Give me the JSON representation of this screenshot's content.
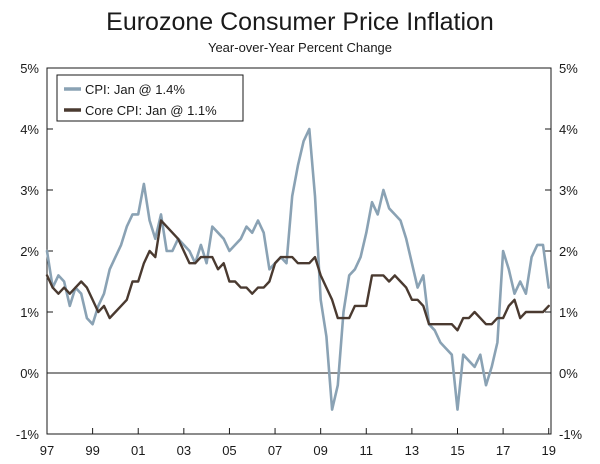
{
  "chart_data": {
    "type": "line",
    "title": "Eurozone Consumer Price Inflation",
    "subtitle": "Year-over-Year Percent Change",
    "xlabel": "",
    "ylabel": "",
    "xlim": [
      1997.0,
      2019.1
    ],
    "ylim": [
      -1,
      5
    ],
    "x_ticks": [
      {
        "value": 1997,
        "label": "97"
      },
      {
        "value": 1999,
        "label": "99"
      },
      {
        "value": 2001,
        "label": "01"
      },
      {
        "value": 2003,
        "label": "03"
      },
      {
        "value": 2005,
        "label": "05"
      },
      {
        "value": 2007,
        "label": "07"
      },
      {
        "value": 2009,
        "label": "09"
      },
      {
        "value": 2011,
        "label": "11"
      },
      {
        "value": 2013,
        "label": "13"
      },
      {
        "value": 2015,
        "label": "15"
      },
      {
        "value": 2017,
        "label": "17"
      },
      {
        "value": 2019,
        "label": "19"
      }
    ],
    "y_ticks": [
      {
        "value": 5,
        "label": "5%"
      },
      {
        "value": 4,
        "label": "4%"
      },
      {
        "value": 3,
        "label": "3%"
      },
      {
        "value": 2,
        "label": "2%"
      },
      {
        "value": 1,
        "label": "1%"
      },
      {
        "value": 0,
        "label": "0%"
      },
      {
        "value": -1,
        "label": "-1%"
      }
    ],
    "grid": false,
    "zero_line": true,
    "legend_position": "top-left",
    "series": [
      {
        "name": "CPI: Jan @ 1.4%",
        "color": "#8aa2b4",
        "x": [
          1997.0,
          1997.25,
          1997.5,
          1997.75,
          1998.0,
          1998.25,
          1998.5,
          1998.75,
          1999.0,
          1999.25,
          1999.5,
          1999.75,
          2000.0,
          2000.25,
          2000.5,
          2000.75,
          2001.0,
          2001.25,
          2001.5,
          2001.75,
          2002.0,
          2002.25,
          2002.5,
          2002.75,
          2003.0,
          2003.25,
          2003.5,
          2003.75,
          2004.0,
          2004.25,
          2004.5,
          2004.75,
          2005.0,
          2005.25,
          2005.5,
          2005.75,
          2006.0,
          2006.25,
          2006.5,
          2006.75,
          2007.0,
          2007.25,
          2007.5,
          2007.75,
          2008.0,
          2008.25,
          2008.5,
          2008.75,
          2009.0,
          2009.25,
          2009.5,
          2009.75,
          2010.0,
          2010.25,
          2010.5,
          2010.75,
          2011.0,
          2011.25,
          2011.5,
          2011.75,
          2012.0,
          2012.25,
          2012.5,
          2012.75,
          2013.0,
          2013.25,
          2013.5,
          2013.75,
          2014.0,
          2014.25,
          2014.5,
          2014.75,
          2015.0,
          2015.25,
          2015.5,
          2015.75,
          2016.0,
          2016.25,
          2016.5,
          2016.75,
          2017.0,
          2017.25,
          2017.5,
          2017.75,
          2018.0,
          2018.25,
          2018.5,
          2018.75,
          2019.0
        ],
        "values": [
          2.0,
          1.4,
          1.6,
          1.5,
          1.1,
          1.4,
          1.3,
          0.9,
          0.8,
          1.1,
          1.3,
          1.7,
          1.9,
          2.1,
          2.4,
          2.6,
          2.6,
          3.1,
          2.5,
          2.2,
          2.6,
          2.0,
          2.0,
          2.2,
          2.1,
          2.0,
          1.8,
          2.1,
          1.8,
          2.4,
          2.3,
          2.2,
          2.0,
          2.1,
          2.2,
          2.4,
          2.3,
          2.5,
          2.3,
          1.7,
          1.8,
          1.9,
          1.8,
          2.9,
          3.4,
          3.8,
          4.0,
          2.9,
          1.2,
          0.6,
          -0.6,
          -0.2,
          1.0,
          1.6,
          1.7,
          1.9,
          2.3,
          2.8,
          2.6,
          3.0,
          2.7,
          2.6,
          2.5,
          2.2,
          1.8,
          1.4,
          1.6,
          0.8,
          0.7,
          0.5,
          0.4,
          0.3,
          -0.6,
          0.3,
          0.2,
          0.1,
          0.3,
          -0.2,
          0.1,
          0.5,
          2.0,
          1.7,
          1.3,
          1.5,
          1.3,
          1.9,
          2.1,
          2.1,
          1.4
        ]
      },
      {
        "name": "Core CPI: Jan @ 1.1%",
        "color": "#4a3a30",
        "x": [
          1997.0,
          1997.25,
          1997.5,
          1997.75,
          1998.0,
          1998.25,
          1998.5,
          1998.75,
          1999.0,
          1999.25,
          1999.5,
          1999.75,
          2000.0,
          2000.25,
          2000.5,
          2000.75,
          2001.0,
          2001.25,
          2001.5,
          2001.75,
          2002.0,
          2002.25,
          2002.5,
          2002.75,
          2003.0,
          2003.25,
          2003.5,
          2003.75,
          2004.0,
          2004.25,
          2004.5,
          2004.75,
          2005.0,
          2005.25,
          2005.5,
          2005.75,
          2006.0,
          2006.25,
          2006.5,
          2006.75,
          2007.0,
          2007.25,
          2007.5,
          2007.75,
          2008.0,
          2008.25,
          2008.5,
          2008.75,
          2009.0,
          2009.25,
          2009.5,
          2009.75,
          2010.0,
          2010.25,
          2010.5,
          2010.75,
          2011.0,
          2011.25,
          2011.5,
          2011.75,
          2012.0,
          2012.25,
          2012.5,
          2012.75,
          2013.0,
          2013.25,
          2013.5,
          2013.75,
          2014.0,
          2014.25,
          2014.5,
          2014.75,
          2015.0,
          2015.25,
          2015.5,
          2015.75,
          2016.0,
          2016.25,
          2016.5,
          2016.75,
          2017.0,
          2017.25,
          2017.5,
          2017.75,
          2018.0,
          2018.25,
          2018.5,
          2018.75,
          2019.0
        ],
        "values": [
          1.6,
          1.4,
          1.3,
          1.4,
          1.3,
          1.4,
          1.5,
          1.4,
          1.2,
          1.0,
          1.1,
          0.9,
          1.0,
          1.1,
          1.2,
          1.5,
          1.5,
          1.8,
          2.0,
          1.9,
          2.5,
          2.4,
          2.3,
          2.2,
          2.0,
          1.8,
          1.8,
          1.9,
          1.9,
          1.9,
          1.7,
          1.8,
          1.5,
          1.5,
          1.4,
          1.4,
          1.3,
          1.4,
          1.4,
          1.5,
          1.8,
          1.9,
          1.9,
          1.9,
          1.8,
          1.8,
          1.8,
          1.9,
          1.6,
          1.4,
          1.2,
          0.9,
          0.9,
          0.9,
          1.1,
          1.1,
          1.1,
          1.6,
          1.6,
          1.6,
          1.5,
          1.6,
          1.5,
          1.4,
          1.2,
          1.2,
          1.1,
          0.8,
          0.8,
          0.8,
          0.8,
          0.8,
          0.7,
          0.9,
          0.9,
          1.0,
          0.9,
          0.8,
          0.8,
          0.9,
          0.9,
          1.1,
          1.2,
          0.9,
          1.0,
          1.0,
          1.0,
          1.0,
          1.1
        ]
      }
    ]
  }
}
